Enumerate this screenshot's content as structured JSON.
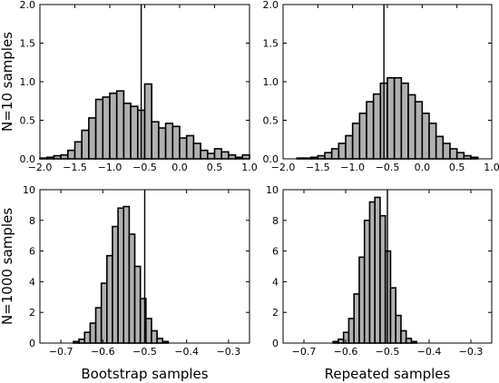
{
  "chart_data": [
    {
      "type": "bar",
      "row_label": "N=10 samples",
      "xlabel": "",
      "xlim": [
        -2.0,
        1.0
      ],
      "ylim": [
        0,
        2.0
      ],
      "xticks": [
        "−2.0",
        "−1.5",
        "−1.0",
        "−0.5",
        "0.0",
        "0.5",
        "1.0"
      ],
      "yticks": [
        "0.0",
        "0.5",
        "1.0",
        "1.5",
        "2.0"
      ],
      "bin_start": -2.0,
      "bin_width": 0.1,
      "values": [
        0.01,
        0.02,
        0.04,
        0.05,
        0.11,
        0.22,
        0.37,
        0.53,
        0.77,
        0.8,
        0.85,
        0.88,
        0.72,
        0.68,
        0.63,
        0.97,
        0.48,
        0.4,
        0.46,
        0.42,
        0.27,
        0.3,
        0.2,
        0.11,
        0.07,
        0.13,
        0.09,
        0.05,
        0.02,
        0.05
      ],
      "vline": -0.55
    },
    {
      "type": "bar",
      "row_label": "",
      "xlabel": "",
      "xlim": [
        -2.0,
        1.0
      ],
      "ylim": [
        0,
        2.0
      ],
      "xticks": [
        "−2.0",
        "−1.5",
        "−1.0",
        "−0.5",
        "0.0",
        "0.5",
        "1.0"
      ],
      "yticks": [
        "0.0",
        "0.5",
        "1.0",
        "1.5",
        "2.0"
      ],
      "bin_start": -1.8,
      "bin_width": 0.1,
      "values": [
        0.01,
        0.01,
        0.02,
        0.04,
        0.08,
        0.13,
        0.2,
        0.3,
        0.46,
        0.59,
        0.74,
        0.84,
        0.98,
        1.05,
        1.05,
        0.98,
        0.83,
        0.74,
        0.59,
        0.46,
        0.29,
        0.2,
        0.13,
        0.08,
        0.04,
        0.02
      ],
      "vline": -0.55
    },
    {
      "type": "bar",
      "row_label": "N=1000 samples",
      "xlabel": "Bootstrap samples",
      "xlim": [
        -0.75,
        -0.25
      ],
      "ylim": [
        0,
        10
      ],
      "xticks": [
        "−0.7",
        "−0.6",
        "−0.5",
        "−0.4",
        "−0.3"
      ],
      "yticks": [
        "0",
        "2",
        "4",
        "6",
        "8",
        "10"
      ],
      "bin_start": -0.67,
      "bin_width": 0.0133,
      "values": [
        0.1,
        0.25,
        0.7,
        1.3,
        2.3,
        3.9,
        5.7,
        7.6,
        8.8,
        8.9,
        7.1,
        5.0,
        2.9,
        1.6,
        0.8,
        0.3,
        0.1
      ],
      "vline": -0.5
    },
    {
      "type": "bar",
      "row_label": "",
      "xlabel": "Repeated samples",
      "xlim": [
        -0.75,
        -0.25
      ],
      "ylim": [
        0,
        10
      ],
      "xticks": [
        "−0.7",
        "−0.6",
        "−0.5",
        "−0.4",
        "−0.3"
      ],
      "yticks": [
        "0",
        "2",
        "4",
        "6",
        "8",
        "10"
      ],
      "bin_start": -0.63,
      "bin_width": 0.0125,
      "values": [
        0.1,
        0.25,
        0.7,
        1.6,
        3.2,
        5.6,
        8.0,
        9.2,
        9.5,
        8.3,
        6.0,
        3.6,
        1.8,
        0.8,
        0.3,
        0.1
      ],
      "vline": -0.5
    }
  ]
}
